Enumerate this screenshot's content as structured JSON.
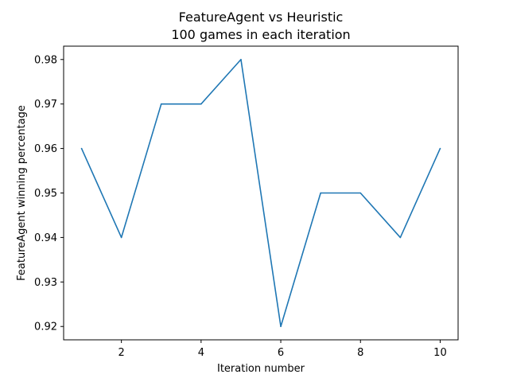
{
  "chart_data": {
    "type": "line",
    "title": "FeatureAgent vs Heuristic",
    "subtitle": "100 games in each iteration",
    "xlabel": "Iteration number",
    "ylabel": "FeatureAgent winning percentage",
    "x": [
      1,
      2,
      3,
      4,
      5,
      6,
      7,
      8,
      9,
      10
    ],
    "series": [
      {
        "values": [
          0.96,
          0.94,
          0.97,
          0.97,
          0.98,
          0.92,
          0.95,
          0.95,
          0.94,
          0.96
        ],
        "color": "#1f77b4"
      }
    ],
    "xlim": [
      0.55,
      10.45
    ],
    "ylim": [
      0.917,
      0.983
    ],
    "xticks": [
      2,
      4,
      6,
      8,
      10
    ],
    "xtick_labels": [
      "2",
      "4",
      "6",
      "8",
      "10"
    ],
    "yticks": [
      0.92,
      0.93,
      0.94,
      0.95,
      0.96,
      0.97,
      0.98
    ],
    "ytick_labels": [
      "0.92",
      "0.93",
      "0.94",
      "0.95",
      "0.96",
      "0.97",
      "0.98"
    ],
    "grid": false,
    "legend": "none"
  }
}
